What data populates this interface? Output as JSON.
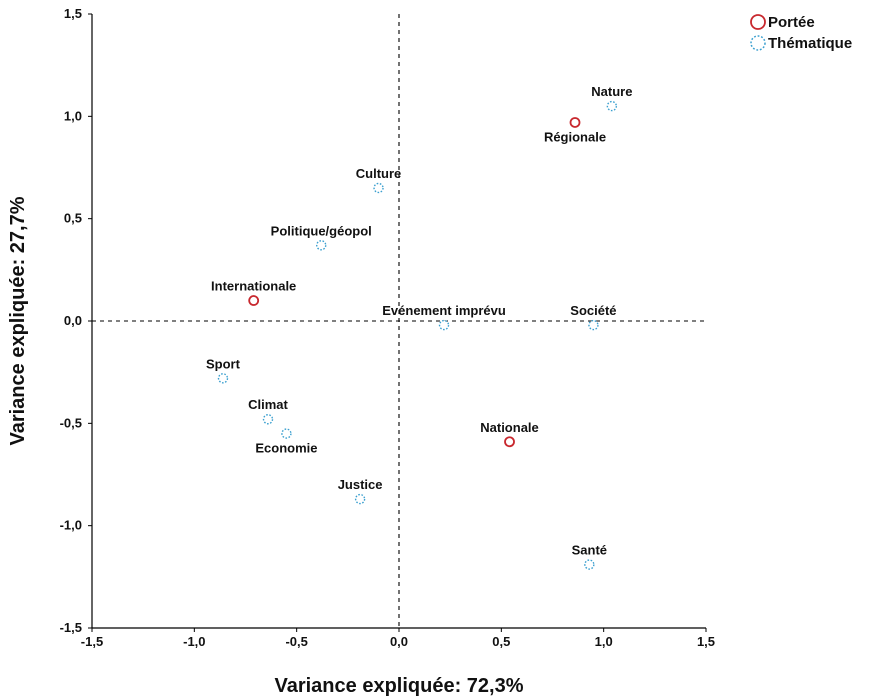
{
  "colors": {
    "portee": "#c8282e",
    "thematique": "#3a9fcf",
    "axis": "#000000"
  },
  "chart_data": {
    "type": "scatter",
    "title": "",
    "xlabel": "Variance expliquée: 72,3%",
    "ylabel": "Variance expliquée: 27,7%",
    "xlim": [
      -1.5,
      1.5
    ],
    "ylim": [
      -1.5,
      1.5
    ],
    "x_ticks": [
      {
        "value": -1.5,
        "label": "-1,5"
      },
      {
        "value": -1.0,
        "label": "-1,0"
      },
      {
        "value": -0.5,
        "label": "-0,5"
      },
      {
        "value": 0.0,
        "label": "0,0"
      },
      {
        "value": 0.5,
        "label": "0,5"
      },
      {
        "value": 1.0,
        "label": "1,0"
      },
      {
        "value": 1.5,
        "label": "1,5"
      }
    ],
    "y_ticks": [
      {
        "value": 1.5,
        "label": "1,5"
      },
      {
        "value": 1.0,
        "label": "1,0"
      },
      {
        "value": 0.5,
        "label": "0,5"
      },
      {
        "value": 0.0,
        "label": "0,0"
      },
      {
        "value": -0.5,
        "label": "-0,5"
      },
      {
        "value": -1.0,
        "label": "-1,0"
      },
      {
        "value": -1.5,
        "label": "-1,5"
      }
    ],
    "grid": false,
    "reference_lines": {
      "x": 0,
      "y": 0,
      "style": "dashed"
    },
    "legend_position": "top-right",
    "series": [
      {
        "name": "Portée",
        "marker": "circle-solid",
        "color": "#c8282e",
        "points": [
          {
            "label": "Internationale",
            "x": -0.71,
            "y": 0.1,
            "label_pos": "above"
          },
          {
            "label": "Régionale",
            "x": 0.86,
            "y": 0.97,
            "label_pos": "below"
          },
          {
            "label": "Nationale",
            "x": 0.54,
            "y": -0.59,
            "label_pos": "above"
          }
        ]
      },
      {
        "name": "Thématique",
        "marker": "circle-dotted",
        "color": "#3a9fcf",
        "points": [
          {
            "label": "Nature",
            "x": 1.04,
            "y": 1.05,
            "label_pos": "above"
          },
          {
            "label": "Culture",
            "x": -0.1,
            "y": 0.65,
            "label_pos": "above"
          },
          {
            "label": "Politique/géopol",
            "x": -0.38,
            "y": 0.37,
            "label_pos": "above"
          },
          {
            "label": "Evénement imprévu",
            "x": 0.22,
            "y": -0.02,
            "label_pos": "above"
          },
          {
            "label": "Société",
            "x": 0.95,
            "y": -0.02,
            "label_pos": "above"
          },
          {
            "label": "Sport",
            "x": -0.86,
            "y": -0.28,
            "label_pos": "above"
          },
          {
            "label": "Climat",
            "x": -0.64,
            "y": -0.48,
            "label_pos": "above"
          },
          {
            "label": "Economie",
            "x": -0.55,
            "y": -0.55,
            "label_pos": "below"
          },
          {
            "label": "Justice",
            "x": -0.19,
            "y": -0.87,
            "label_pos": "above"
          },
          {
            "label": "Santé",
            "x": 0.93,
            "y": -1.19,
            "label_pos": "above"
          }
        ]
      }
    ]
  }
}
